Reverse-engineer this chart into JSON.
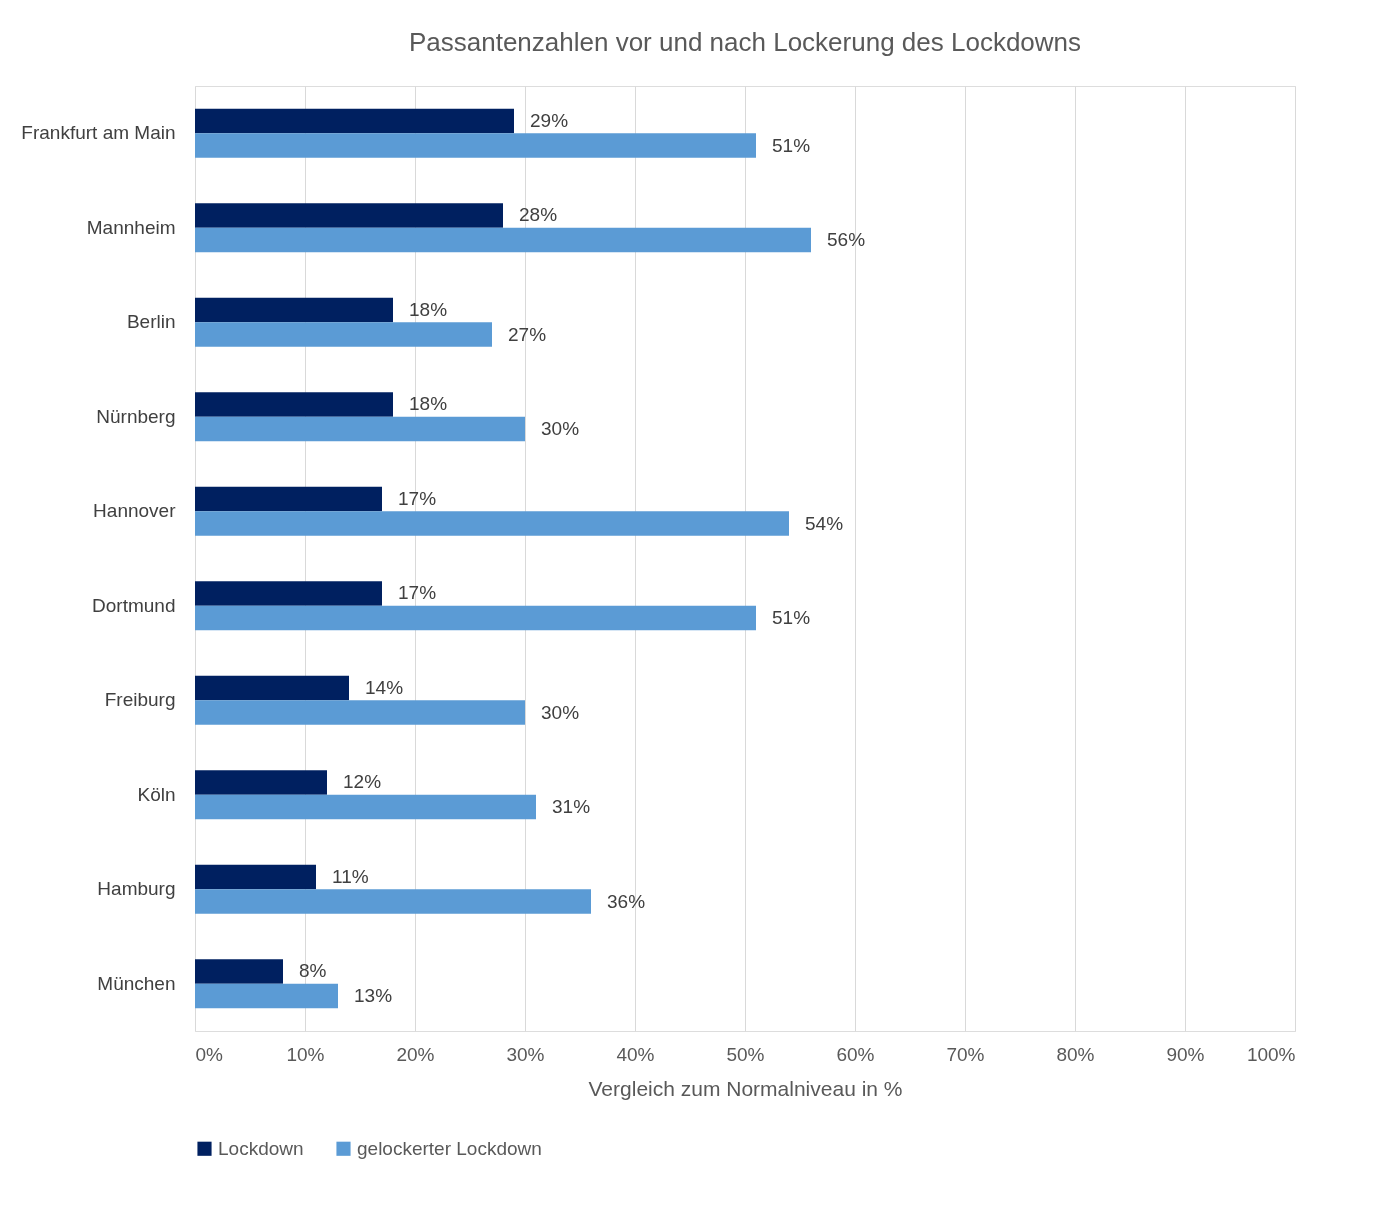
{
  "chart_data": {
    "type": "bar",
    "orientation": "horizontal",
    "title": "Passantenzahlen vor und nach Lockerung des Lockdowns",
    "xlabel": "Vergleich zum Normalniveau in %",
    "categories": [
      "Frankfurt am Main",
      "Mannheim",
      "Berlin",
      "Nürnberg",
      "Hannover",
      "Dortmund",
      "Freiburg",
      "Köln",
      "Hamburg",
      "München"
    ],
    "series": [
      {
        "name": "Lockdown",
        "color": "#002060",
        "values": [
          29,
          28,
          18,
          18,
          17,
          17,
          14,
          12,
          11,
          8
        ],
        "value_labels": [
          "29%",
          "28%",
          "18%",
          "18%",
          "17%",
          "17%",
          "14%",
          "12%",
          "11%",
          "8%"
        ]
      },
      {
        "name": "gelockerter Lockdown",
        "color": "#5b9bd5",
        "values": [
          51,
          56,
          27,
          30,
          54,
          51,
          30,
          31,
          36,
          13
        ],
        "value_labels": [
          "51%",
          "56%",
          "27%",
          "30%",
          "54%",
          "51%",
          "30%",
          "31%",
          "36%",
          "13%"
        ]
      }
    ],
    "xlim": [
      0,
      100
    ],
    "xticks": [
      {
        "value": 0,
        "label": "0%"
      },
      {
        "value": 10,
        "label": "10%"
      },
      {
        "value": 20,
        "label": "20%"
      },
      {
        "value": 30,
        "label": "30%"
      },
      {
        "value": 40,
        "label": "40%"
      },
      {
        "value": 50,
        "label": "50%"
      },
      {
        "value": 60,
        "label": "60%"
      },
      {
        "value": 70,
        "label": "70%"
      },
      {
        "value": 80,
        "label": "80%"
      },
      {
        "value": 90,
        "label": "90%"
      },
      {
        "value": 100,
        "label": "100%"
      }
    ],
    "grid": "x",
    "legend": "bottom"
  }
}
